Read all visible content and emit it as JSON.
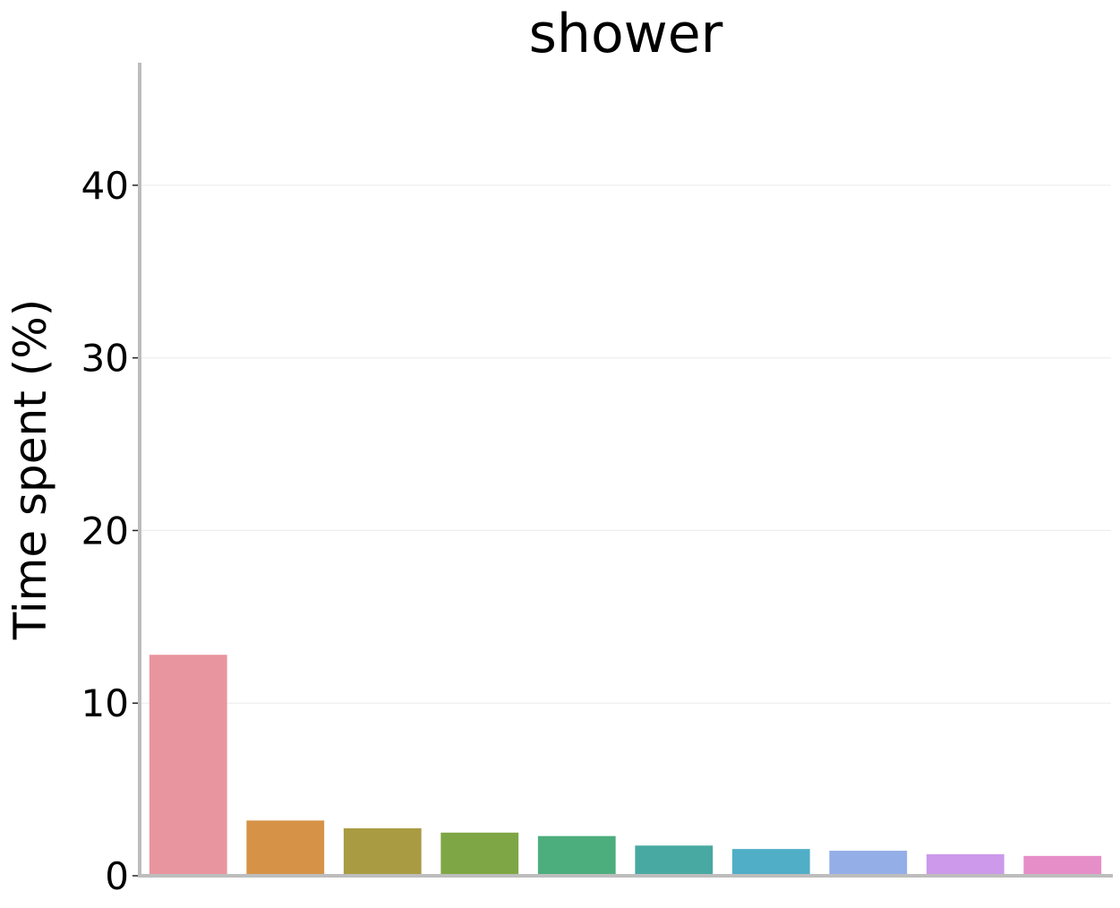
{
  "chart_data": {
    "type": "bar",
    "title": "shower",
    "xlabel": "",
    "ylabel": "Time spent (%)",
    "ylim": [
      0,
      47.1
    ],
    "yticks": [
      0,
      10,
      20,
      30,
      40
    ],
    "ytick_labels": [
      "0",
      "10",
      "20",
      "30",
      "40"
    ],
    "grid": "horizontal",
    "legend": "none",
    "categories": [
      "",
      "",
      "",
      "",
      "",
      "",
      "",
      "",
      "",
      ""
    ],
    "values": [
      12.8,
      3.2,
      2.75,
      2.5,
      2.3,
      1.75,
      1.55,
      1.45,
      1.25,
      1.15
    ],
    "colors": [
      "#e8959f",
      "#d69348",
      "#a99b42",
      "#7ea645",
      "#4cad7d",
      "#48a9a2",
      "#50aec7",
      "#94aee8",
      "#cd99ea",
      "#e68ec7"
    ],
    "axis_color": "#bdbdbd",
    "grid_color": "#ebebeb"
  }
}
